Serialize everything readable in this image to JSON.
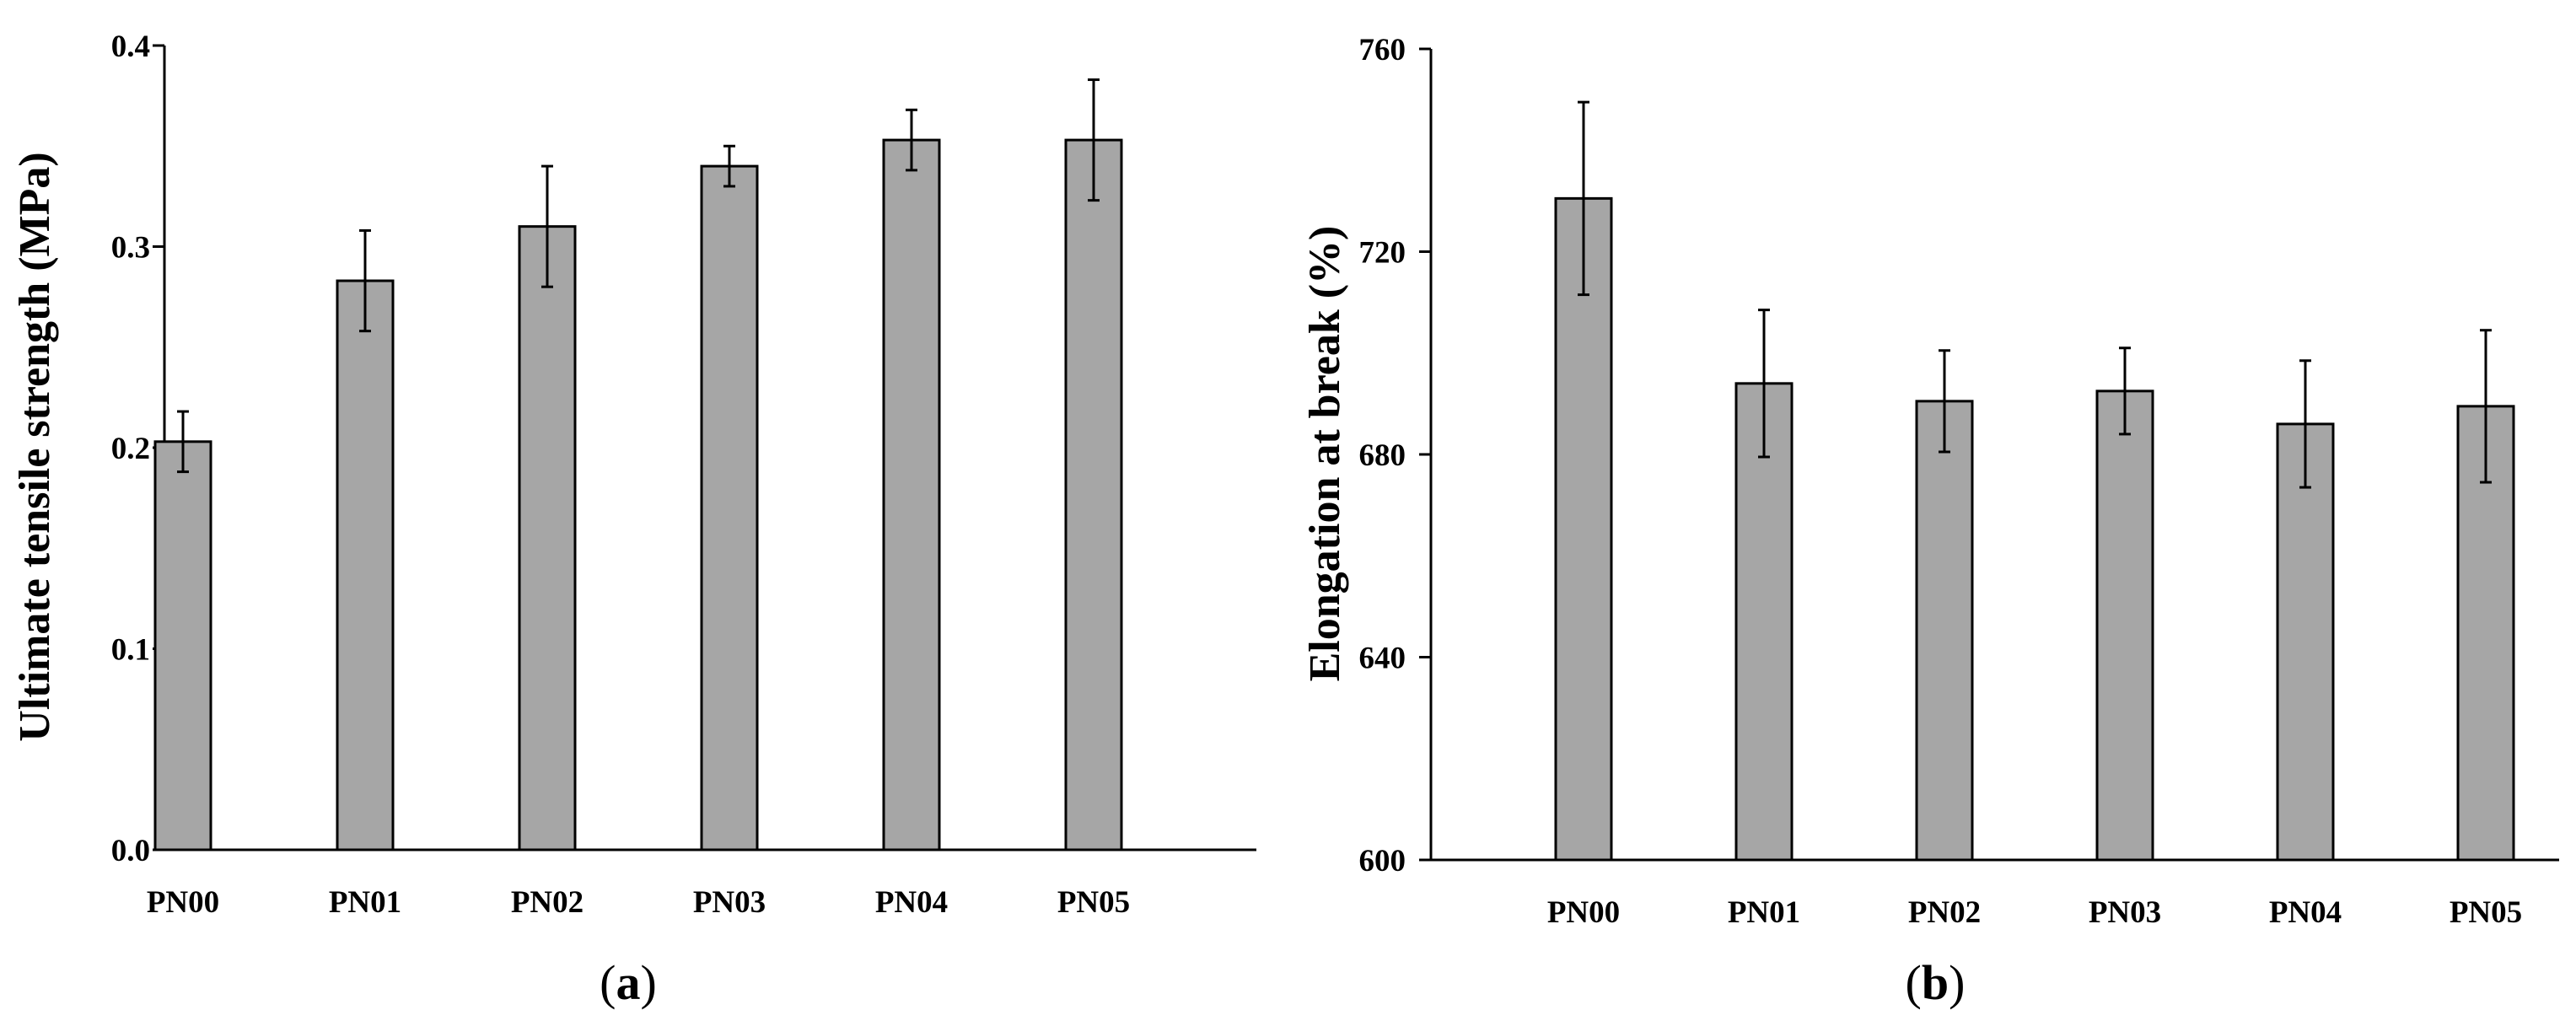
{
  "chart_data": [
    {
      "type": "bar",
      "panel": "(a)",
      "panel_letter": "a",
      "categories": [
        "PN00",
        "PN01",
        "PN02",
        "PN03",
        "PN04",
        "PN05"
      ],
      "values": [
        0.203,
        0.283,
        0.31,
        0.34,
        0.353,
        0.353
      ],
      "errors": [
        0.015,
        0.025,
        0.03,
        0.01,
        0.015,
        0.03
      ],
      "ylabel": "Ultimate tensile strength (MPa)",
      "xlabel": "",
      "ylim": [
        0.0,
        0.4
      ],
      "yticks": [
        0.0,
        0.1,
        0.2,
        0.3,
        0.4
      ],
      "ytick_labels": [
        "0.0",
        "0.1",
        "0.2",
        "0.3",
        "0.4"
      ],
      "grid": false,
      "bar_color": "#a6a6a6"
    },
    {
      "type": "bar",
      "panel": "(b)",
      "panel_letter": "b",
      "categories": [
        "PN00",
        "PN01",
        "PN02",
        "PN03",
        "PN04",
        "PN05"
      ],
      "values": [
        730.5,
        694.0,
        690.5,
        692.5,
        686.0,
        689.5
      ],
      "errors": [
        19.0,
        14.5,
        10.0,
        8.5,
        12.5,
        15.0
      ],
      "ylabel": "Elongation at break (%)",
      "xlabel": "",
      "ylim": [
        600,
        760
      ],
      "yticks": [
        600,
        640,
        680,
        720,
        760
      ],
      "ytick_labels": [
        "600",
        "640",
        "680",
        "720",
        "760"
      ],
      "grid": false,
      "bar_color": "#a6a6a6"
    }
  ]
}
